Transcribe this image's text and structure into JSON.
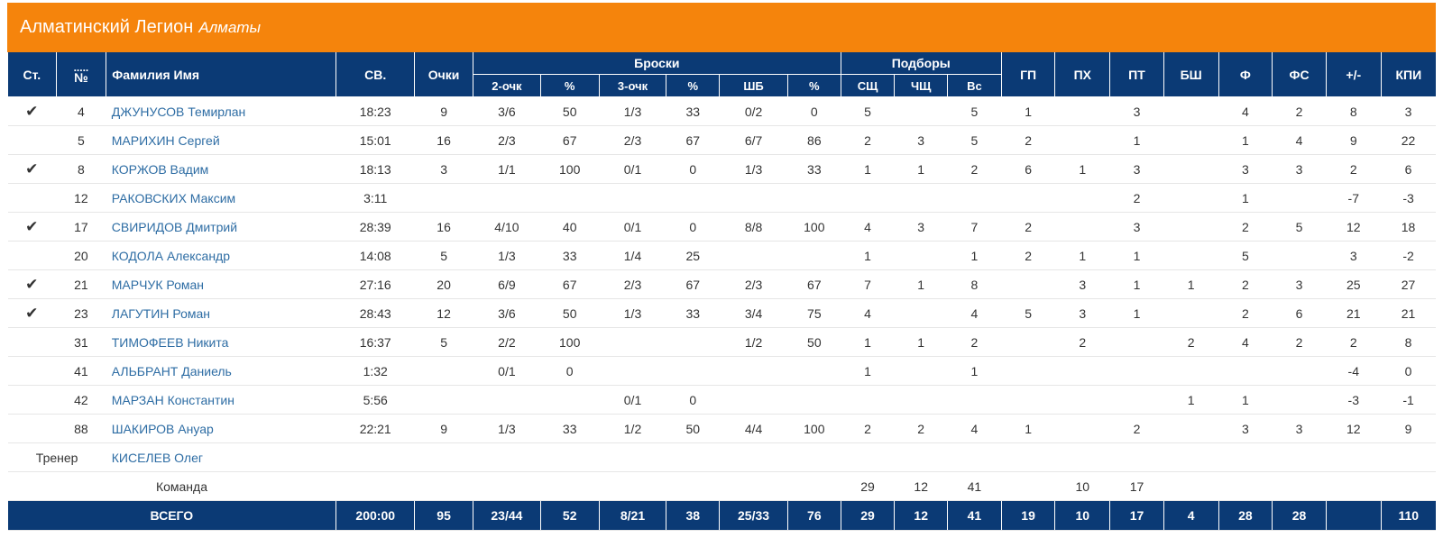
{
  "team": {
    "name": "Алматинский Легион",
    "city": "Алматы"
  },
  "header": {
    "st": "Ст.",
    "num": "№",
    "name": "Фамилия Имя",
    "min": "СВ.",
    "pts": "Очки",
    "shots": "Броски",
    "rebounds": "Подборы",
    "two": "2-очк",
    "two_pct": "%",
    "three": "3-очк",
    "three_pct": "%",
    "ft": "ШБ",
    "ft_pct": "%",
    "oreb": "СЩ",
    "dreb": "ЧЩ",
    "reb": "Вс",
    "ast": "ГП",
    "stl": "ПХ",
    "tov": "ПТ",
    "blk": "БШ",
    "pf": "Ф",
    "fd": "ФС",
    "pm": "+/-",
    "eff": "КПИ"
  },
  "players": [
    {
      "starter": "✔",
      "num": "4",
      "name": "ДЖУНУСОВ Темирлан",
      "min": "18:23",
      "pts": "9",
      "two": "3/6",
      "two_pct": "50",
      "three": "1/3",
      "three_pct": "33",
      "ft": "0/2",
      "ft_pct": "0",
      "oreb": "5",
      "dreb": "",
      "reb": "5",
      "ast": "1",
      "stl": "",
      "tov": "3",
      "blk": "",
      "pf": "4",
      "fd": "2",
      "pm": "8",
      "eff": "3"
    },
    {
      "starter": "",
      "num": "5",
      "name": "МАРИХИН Сергей",
      "min": "15:01",
      "pts": "16",
      "two": "2/3",
      "two_pct": "67",
      "three": "2/3",
      "three_pct": "67",
      "ft": "6/7",
      "ft_pct": "86",
      "oreb": "2",
      "dreb": "3",
      "reb": "5",
      "ast": "2",
      "stl": "",
      "tov": "1",
      "blk": "",
      "pf": "1",
      "fd": "4",
      "pm": "9",
      "eff": "22"
    },
    {
      "starter": "✔",
      "num": "8",
      "name": "КОРЖОВ Вадим",
      "min": "18:13",
      "pts": "3",
      "two": "1/1",
      "two_pct": "100",
      "three": "0/1",
      "three_pct": "0",
      "ft": "1/3",
      "ft_pct": "33",
      "oreb": "1",
      "dreb": "1",
      "reb": "2",
      "ast": "6",
      "stl": "1",
      "tov": "3",
      "blk": "",
      "pf": "3",
      "fd": "3",
      "pm": "2",
      "eff": "6"
    },
    {
      "starter": "",
      "num": "12",
      "name": "РАКОВСКИХ Максим",
      "min": "3:11",
      "pts": "",
      "two": "",
      "two_pct": "",
      "three": "",
      "three_pct": "",
      "ft": "",
      "ft_pct": "",
      "oreb": "",
      "dreb": "",
      "reb": "",
      "ast": "",
      "stl": "",
      "tov": "2",
      "blk": "",
      "pf": "1",
      "fd": "",
      "pm": "-7",
      "eff": "-3"
    },
    {
      "starter": "✔",
      "num": "17",
      "name": "СВИРИДОВ Дмитрий",
      "min": "28:39",
      "pts": "16",
      "two": "4/10",
      "two_pct": "40",
      "three": "0/1",
      "three_pct": "0",
      "ft": "8/8",
      "ft_pct": "100",
      "oreb": "4",
      "dreb": "3",
      "reb": "7",
      "ast": "2",
      "stl": "",
      "tov": "3",
      "blk": "",
      "pf": "2",
      "fd": "5",
      "pm": "12",
      "eff": "18"
    },
    {
      "starter": "",
      "num": "20",
      "name": "КОДОЛА Александр",
      "min": "14:08",
      "pts": "5",
      "two": "1/3",
      "two_pct": "33",
      "three": "1/4",
      "three_pct": "25",
      "ft": "",
      "ft_pct": "",
      "oreb": "1",
      "dreb": "",
      "reb": "1",
      "ast": "2",
      "stl": "1",
      "tov": "1",
      "blk": "",
      "pf": "5",
      "fd": "",
      "pm": "3",
      "eff": "-2"
    },
    {
      "starter": "✔",
      "num": "21",
      "name": "МАРЧУК Роман",
      "min": "27:16",
      "pts": "20",
      "two": "6/9",
      "two_pct": "67",
      "three": "2/3",
      "three_pct": "67",
      "ft": "2/3",
      "ft_pct": "67",
      "oreb": "7",
      "dreb": "1",
      "reb": "8",
      "ast": "",
      "stl": "3",
      "tov": "1",
      "blk": "1",
      "pf": "2",
      "fd": "3",
      "pm": "25",
      "eff": "27"
    },
    {
      "starter": "✔",
      "num": "23",
      "name": "ЛАГУТИН Роман",
      "min": "28:43",
      "pts": "12",
      "two": "3/6",
      "two_pct": "50",
      "three": "1/3",
      "three_pct": "33",
      "ft": "3/4",
      "ft_pct": "75",
      "oreb": "4",
      "dreb": "",
      "reb": "4",
      "ast": "5",
      "stl": "3",
      "tov": "1",
      "blk": "",
      "pf": "2",
      "fd": "6",
      "pm": "21",
      "eff": "21"
    },
    {
      "starter": "",
      "num": "31",
      "name": "ТИМОФЕЕВ Никита",
      "min": "16:37",
      "pts": "5",
      "two": "2/2",
      "two_pct": "100",
      "three": "",
      "three_pct": "",
      "ft": "1/2",
      "ft_pct": "50",
      "oreb": "1",
      "dreb": "1",
      "reb": "2",
      "ast": "",
      "stl": "2",
      "tov": "",
      "blk": "2",
      "pf": "4",
      "fd": "2",
      "pm": "2",
      "eff": "8"
    },
    {
      "starter": "",
      "num": "41",
      "name": "АЛЬБРАНТ Даниель",
      "min": "1:32",
      "pts": "",
      "two": "0/1",
      "two_pct": "0",
      "three": "",
      "three_pct": "",
      "ft": "",
      "ft_pct": "",
      "oreb": "1",
      "dreb": "",
      "reb": "1",
      "ast": "",
      "stl": "",
      "tov": "",
      "blk": "",
      "pf": "",
      "fd": "",
      "pm": "-4",
      "eff": "0"
    },
    {
      "starter": "",
      "num": "42",
      "name": "МАРЗАН Константин",
      "min": "5:56",
      "pts": "",
      "two": "",
      "two_pct": "",
      "three": "0/1",
      "three_pct": "0",
      "ft": "",
      "ft_pct": "",
      "oreb": "",
      "dreb": "",
      "reb": "",
      "ast": "",
      "stl": "",
      "tov": "",
      "blk": "1",
      "pf": "1",
      "fd": "",
      "pm": "-3",
      "eff": "-1"
    },
    {
      "starter": "",
      "num": "88",
      "name": "ШАКИРОВ Ануар",
      "min": "22:21",
      "pts": "9",
      "two": "1/3",
      "two_pct": "33",
      "three": "1/2",
      "three_pct": "50",
      "ft": "4/4",
      "ft_pct": "100",
      "oreb": "2",
      "dreb": "2",
      "reb": "4",
      "ast": "1",
      "stl": "",
      "tov": "2",
      "blk": "",
      "pf": "3",
      "fd": "3",
      "pm": "12",
      "eff": "9"
    }
  ],
  "coach": {
    "label": "Тренер",
    "name": "КИСЕЛЕВ Олег"
  },
  "team_row": {
    "label": "Команда",
    "oreb": "29",
    "dreb": "12",
    "reb": "41",
    "stl": "10",
    "tov": "17"
  },
  "totals": {
    "label": "ВСЕГО",
    "min": "200:00",
    "pts": "95",
    "two": "23/44",
    "two_pct": "52",
    "three": "8/21",
    "three_pct": "38",
    "ft": "25/33",
    "ft_pct": "76",
    "oreb": "29",
    "dreb": "12",
    "reb": "41",
    "ast": "19",
    "stl": "10",
    "tov": "17",
    "blk": "4",
    "pf": "28",
    "fd": "28",
    "pm": "",
    "eff": "110"
  },
  "colors": {
    "header_bg": "#0b3a75",
    "title_bg": "#f5840c",
    "link": "#2e6da4"
  }
}
